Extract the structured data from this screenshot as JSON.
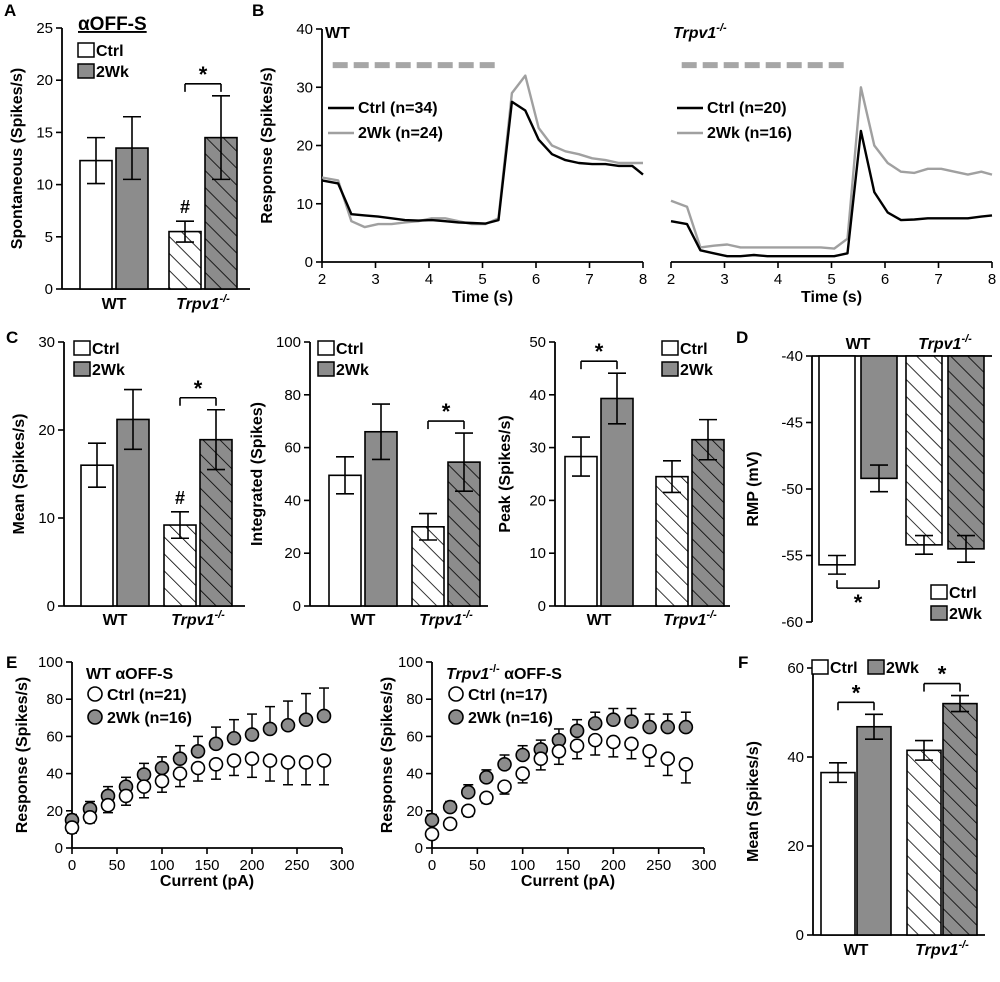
{
  "figure": {
    "panels": [
      "A",
      "B",
      "C",
      "D",
      "E",
      "F"
    ],
    "colors": {
      "ctrl": "#ffffff",
      "twowk": "#8c8c8c",
      "ctrl_line": "#000000",
      "twowk_line": "#a0a0a0",
      "stim_bar": "#a6a6a6"
    },
    "legend": {
      "ctrl": "Ctrl",
      "twowk": "2Wk"
    },
    "groups": [
      "WT",
      "Trpv1"
    ],
    "sup": "-/-",
    "star": "*",
    "hash": "#"
  },
  "chart_data": [
    {
      "id": "A",
      "type": "bar",
      "title": "αOFF-S",
      "ylabel": "Spontaneous (Spikes/s)",
      "ylim": [
        0,
        25
      ],
      "yticks": [
        0,
        5,
        10,
        15,
        20,
        25
      ],
      "ytick_labels": [
        "0",
        "5",
        "10",
        "15",
        "20",
        "25"
      ],
      "groups": [
        "WT",
        "Trpv1-/-"
      ],
      "series": [
        {
          "name": "Ctrl",
          "values": [
            12.3,
            5.5
          ],
          "errors": [
            2.2,
            1.0
          ]
        },
        {
          "name": "2Wk",
          "values": [
            13.5,
            14.5
          ],
          "errors": [
            3.0,
            4.0
          ]
        }
      ],
      "significance": [
        {
          "group": "Trpv1-/-",
          "label": "*"
        }
      ],
      "markers": [
        {
          "group": "Trpv1-/-",
          "series": "Ctrl",
          "label": "#"
        }
      ]
    },
    {
      "id": "B-WT",
      "type": "line",
      "title": "WT",
      "xlabel": "Time (s)",
      "ylabel": "Response (Spikes/s)",
      "xlim": [
        2,
        8
      ],
      "ylim": [
        0,
        40
      ],
      "xticks": [
        2,
        3,
        4,
        5,
        6,
        7,
        8
      ],
      "xtick_labels": [
        "2",
        "3",
        "4",
        "5",
        "6",
        "7",
        "8"
      ],
      "yticks": [
        0,
        10,
        20,
        30,
        40
      ],
      "ytick_labels": [
        "0",
        "10",
        "20",
        "30",
        "40"
      ],
      "stimulus": [
        2.2,
        5.3
      ],
      "series": [
        {
          "name": "Ctrl (n=34)",
          "x": [
            2,
            2.3,
            2.55,
            2.8,
            3.05,
            3.3,
            3.55,
            3.8,
            4.05,
            4.3,
            4.55,
            4.8,
            5.05,
            5.3,
            5.55,
            5.8,
            6.05,
            6.3,
            6.55,
            6.8,
            7.05,
            7.3,
            7.55,
            7.8,
            8
          ],
          "y": [
            14,
            13.5,
            8.2,
            8,
            7.8,
            7.5,
            7.2,
            7.1,
            7.2,
            7.0,
            6.8,
            6.7,
            6.6,
            7.2,
            27.5,
            26,
            21,
            18.5,
            17.5,
            17,
            16.8,
            16.8,
            16.5,
            16.5,
            15
          ]
        },
        {
          "name": "2Wk (n=24)",
          "x": [
            2,
            2.3,
            2.55,
            2.8,
            3.05,
            3.3,
            3.55,
            3.8,
            4.05,
            4.3,
            4.55,
            4.8,
            5.05,
            5.3,
            5.55,
            5.8,
            6.05,
            6.3,
            6.55,
            6.8,
            7.05,
            7.3,
            7.55,
            7.8,
            8
          ],
          "y": [
            14.5,
            14,
            7,
            6,
            6.5,
            6.5,
            6.8,
            7,
            7.5,
            7.5,
            7,
            6.5,
            6.5,
            7.5,
            29,
            32,
            23,
            20,
            19,
            18.5,
            17.8,
            17.5,
            17,
            17,
            17
          ]
        }
      ]
    },
    {
      "id": "B-Trpv1",
      "type": "line",
      "title": "Trpv1-/-",
      "xlabel": "Time (s)",
      "xlim": [
        2,
        8
      ],
      "ylim": [
        0,
        40
      ],
      "xticks": [
        2,
        3,
        4,
        5,
        6,
        7,
        8
      ],
      "xtick_labels": [
        "2",
        "3",
        "4",
        "5",
        "6",
        "7",
        "8"
      ],
      "stimulus": [
        2.2,
        5.3
      ],
      "series": [
        {
          "name": "Ctrl (n=20)",
          "x": [
            2,
            2.3,
            2.55,
            2.8,
            3.05,
            3.3,
            3.55,
            3.8,
            4.05,
            4.3,
            4.55,
            4.8,
            5.05,
            5.3,
            5.55,
            5.8,
            6.05,
            6.3,
            6.55,
            6.8,
            7.05,
            7.3,
            7.55,
            7.8,
            8
          ],
          "y": [
            7,
            6.5,
            2,
            1.5,
            1,
            1,
            1.2,
            1,
            1,
            1,
            1,
            1,
            1,
            1.5,
            22.5,
            12,
            8.5,
            7.2,
            7.3,
            7.5,
            7.5,
            7.5,
            7.5,
            7.8,
            8
          ]
        },
        {
          "name": "2Wk (n=16)",
          "x": [
            2,
            2.3,
            2.55,
            2.8,
            3.05,
            3.3,
            3.55,
            3.8,
            4.05,
            4.3,
            4.55,
            4.8,
            5.05,
            5.3,
            5.55,
            5.8,
            6.05,
            6.3,
            6.55,
            6.8,
            7.05,
            7.3,
            7.55,
            7.8,
            8
          ],
          "y": [
            10.5,
            9.5,
            2.5,
            2.8,
            3,
            2.5,
            2.5,
            2.5,
            2.5,
            2.5,
            2.5,
            2.5,
            2.3,
            4,
            30,
            20,
            17,
            15.5,
            15.3,
            16,
            16,
            15.5,
            15,
            15.5,
            15
          ]
        }
      ]
    },
    {
      "id": "C1",
      "type": "bar",
      "ylabel": "Mean (Spikes/s)",
      "ylim": [
        0,
        30
      ],
      "yticks": [
        0,
        10,
        20,
        30
      ],
      "ytick_labels": [
        "0",
        "10",
        "20",
        "30"
      ],
      "groups": [
        "WT",
        "Trpv1-/-"
      ],
      "series": [
        {
          "name": "Ctrl",
          "values": [
            16.0,
            9.2
          ],
          "errors": [
            2.5,
            1.5
          ]
        },
        {
          "name": "2Wk",
          "values": [
            21.2,
            18.9
          ],
          "errors": [
            3.4,
            3.4
          ]
        }
      ],
      "significance": [
        {
          "group": "Trpv1-/-",
          "label": "*"
        }
      ],
      "markers": [
        {
          "group": "Trpv1-/-",
          "series": "Ctrl",
          "label": "#"
        }
      ]
    },
    {
      "id": "C2",
      "type": "bar",
      "ylabel": "Integrated (Spikes)",
      "ylim": [
        0,
        100
      ],
      "yticks": [
        0,
        20,
        40,
        60,
        80,
        100
      ],
      "ytick_labels": [
        "0",
        "20",
        "40",
        "60",
        "80",
        "100"
      ],
      "groups": [
        "WT",
        "Trpv1-/-"
      ],
      "series": [
        {
          "name": "Ctrl",
          "values": [
            49.5,
            30.0
          ],
          "errors": [
            7.0,
            5.0
          ]
        },
        {
          "name": "2Wk",
          "values": [
            66.0,
            54.5
          ],
          "errors": [
            10.5,
            11.0
          ]
        }
      ],
      "significance": [
        {
          "group": "Trpv1-/-",
          "label": "*"
        }
      ]
    },
    {
      "id": "C3",
      "type": "bar",
      "ylabel": "Peak (Spikes/s)",
      "ylim": [
        0,
        50
      ],
      "yticks": [
        0,
        10,
        20,
        30,
        40,
        50
      ],
      "ytick_labels": [
        "0",
        "10",
        "20",
        "30",
        "40",
        "50"
      ],
      "groups": [
        "WT",
        "Trpv1-/-"
      ],
      "series": [
        {
          "name": "Ctrl",
          "values": [
            28.3,
            24.5
          ],
          "errors": [
            3.7,
            3.0
          ]
        },
        {
          "name": "2Wk",
          "values": [
            39.3,
            31.5
          ],
          "errors": [
            4.8,
            3.8
          ]
        }
      ],
      "significance": [
        {
          "group": "WT",
          "label": "*"
        }
      ]
    },
    {
      "id": "D",
      "type": "bar",
      "ylabel": "RMP (mV)",
      "ylim": [
        -60,
        -40
      ],
      "yticks": [
        -40,
        -45,
        -50,
        -55,
        -60
      ],
      "ytick_labels": [
        "-40",
        "-45",
        "-50",
        "-55",
        "-60"
      ],
      "groups": [
        "WT",
        "Trpv1-/-"
      ],
      "series": [
        {
          "name": "Ctrl",
          "values": [
            -55.7,
            -54.2
          ],
          "errors": [
            0.7,
            0.7
          ]
        },
        {
          "name": "2Wk",
          "values": [
            -49.2,
            -54.5
          ],
          "errors": [
            1.0,
            1.0
          ]
        }
      ],
      "significance": [
        {
          "group": "WT",
          "label": "*"
        }
      ]
    },
    {
      "id": "E-WT",
      "type": "scatter",
      "title": "WT αOFF-S",
      "xlabel": "Current (pA)",
      "ylabel": "Response (Spikes/s)",
      "xlim": [
        0,
        300
      ],
      "ylim": [
        0,
        100
      ],
      "xticks": [
        0,
        50,
        100,
        150,
        200,
        250,
        300
      ],
      "xtick_labels": [
        "0",
        "50",
        "100",
        "150",
        "200",
        "250",
        "300"
      ],
      "yticks": [
        0,
        20,
        40,
        60,
        80,
        100
      ],
      "ytick_labels": [
        "0",
        "20",
        "40",
        "60",
        "80",
        "100"
      ],
      "x": [
        0,
        20,
        40,
        60,
        80,
        100,
        120,
        140,
        160,
        180,
        200,
        220,
        240,
        260,
        280
      ],
      "series": [
        {
          "name": "Ctrl (n=21)",
          "values": [
            11,
            16.5,
            23,
            28,
            33,
            36,
            40,
            43,
            45,
            47,
            48,
            47,
            46,
            46,
            47
          ],
          "errors": [
            3,
            3,
            4,
            5,
            6,
            6,
            7,
            7,
            8,
            8,
            10,
            11,
            12,
            12,
            13
          ]
        },
        {
          "name": "2Wk (n=16)",
          "values": [
            15,
            21,
            28,
            33,
            39.5,
            43,
            48,
            52,
            56,
            59,
            61,
            64,
            66,
            69,
            71
          ],
          "errors": [
            3,
            4,
            5,
            5,
            6,
            6,
            7,
            8,
            9,
            10,
            11,
            12,
            13,
            14,
            15
          ]
        }
      ]
    },
    {
      "id": "E-Trpv1",
      "type": "scatter",
      "title": "Trpv1-/- αOFF-S",
      "xlabel": "Current (pA)",
      "ylabel": "Response (Spikes/s)",
      "xlim": [
        0,
        300
      ],
      "ylim": [
        0,
        100
      ],
      "xticks": [
        0,
        50,
        100,
        150,
        200,
        250,
        300
      ],
      "xtick_labels": [
        "0",
        "50",
        "100",
        "150",
        "200",
        "250",
        "300"
      ],
      "yticks": [
        0,
        20,
        40,
        60,
        80,
        100
      ],
      "ytick_labels": [
        "0",
        "20",
        "40",
        "60",
        "80",
        "100"
      ],
      "x": [
        0,
        20,
        40,
        60,
        80,
        100,
        120,
        140,
        160,
        180,
        200,
        220,
        240,
        260,
        280
      ],
      "series": [
        {
          "name": "Ctrl (n=17)",
          "values": [
            7.5,
            13,
            20,
            27,
            33,
            40,
            48,
            52,
            55,
            58,
            57,
            56,
            52,
            48,
            45
          ],
          "errors": [
            2,
            2,
            3,
            3,
            4,
            5,
            6,
            7,
            7,
            8,
            8,
            8,
            8,
            9,
            10
          ]
        },
        {
          "name": "2Wk (n=16)",
          "values": [
            15,
            22,
            30,
            38,
            45,
            50,
            53,
            58,
            63,
            67,
            69,
            68,
            65,
            65,
            65
          ],
          "errors": [
            3,
            3,
            4,
            4,
            5,
            5,
            5,
            6,
            6,
            6,
            6,
            7,
            7,
            7,
            8
          ]
        }
      ]
    },
    {
      "id": "F",
      "type": "bar",
      "ylabel": "Mean (Spikes/s)",
      "ylim": [
        0,
        60
      ],
      "yticks": [
        0,
        20,
        40,
        60
      ],
      "ytick_labels": [
        "0",
        "20",
        "40",
        "60"
      ],
      "groups": [
        "WT",
        "Trpv1-/-"
      ],
      "series": [
        {
          "name": "Ctrl",
          "values": [
            36.5,
            41.5
          ],
          "errors": [
            2.2,
            2.2
          ]
        },
        {
          "name": "2Wk",
          "values": [
            46.8,
            52.0
          ],
          "errors": [
            2.8,
            1.8
          ]
        }
      ],
      "significance": [
        {
          "group": "WT",
          "label": "*"
        },
        {
          "group": "Trpv1-/-",
          "label": "*"
        }
      ]
    }
  ]
}
